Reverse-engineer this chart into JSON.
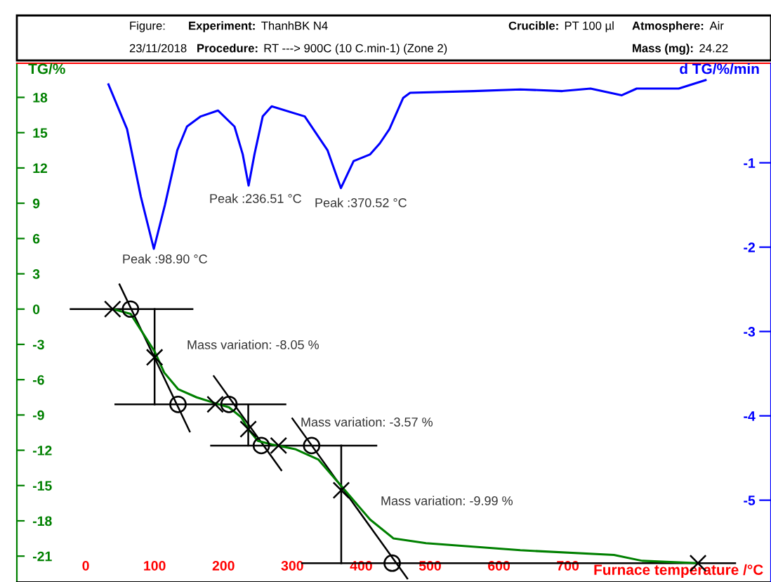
{
  "chart_data": {
    "type": "line",
    "xlabel": "Furnace temperature /°C",
    "ylabel": "TG/%",
    "y2label": "d TG/%/min",
    "xlim": [
      -100,
      995
    ],
    "xticks": [
      0,
      100,
      200,
      300,
      400,
      500,
      600,
      700
    ],
    "ylim": [
      -23.2,
      20.9
    ],
    "yticks": [
      -21,
      -18,
      -15,
      -12,
      -9,
      -6,
      -3,
      0,
      3,
      6,
      9,
      12,
      15,
      18
    ],
    "y2lim": [
      -5.97,
      0.18
    ],
    "y2ticks": [
      -5,
      -4,
      -3,
      -2,
      -1
    ],
    "grid": false,
    "legend": false,
    "series": [
      {
        "axis": "y2",
        "color": "#0000ff",
        "x": [
          33,
          60,
          80,
          98.9,
          115,
          133,
          147,
          167,
          192,
          216,
          228,
          236.5,
          245,
          257,
          270,
          318,
          351,
          370.5,
          389,
          413,
          427,
          441,
          461,
          471,
          563,
          631,
          692,
          733,
          778,
          800,
          861,
          900
        ],
        "values": [
          -0.07,
          -0.6,
          -1.4,
          -2.02,
          -1.5,
          -0.85,
          -0.57,
          -0.45,
          -0.38,
          -0.57,
          -0.9,
          -1.27,
          -0.9,
          -0.45,
          -0.33,
          -0.45,
          -0.85,
          -1.3,
          -0.98,
          -0.9,
          -0.77,
          -0.6,
          -0.23,
          -0.17,
          -0.15,
          -0.13,
          -0.15,
          -0.12,
          -0.2,
          -0.12,
          -0.12,
          -0.02
        ]
      },
      {
        "color": "#008000",
        "x": [
          39,
          65,
          100,
          114,
          134,
          161,
          188,
          208,
          226,
          236,
          250,
          270,
          304,
          338,
          372,
          413,
          447,
          494,
          631,
          767,
          808,
          889
        ],
        "values": [
          0,
          -0.4,
          -3.6,
          -5.4,
          -6.8,
          -7.5,
          -8.0,
          -8.35,
          -9.2,
          -10.2,
          -11.2,
          -11.5,
          -11.9,
          -12.8,
          -15.1,
          -17.9,
          -19.5,
          -19.9,
          -20.5,
          -20.9,
          -21.4,
          -21.6
        ]
      },
      {
        "type": "line",
        "color": "#000000",
        "x": [
          -22,
          155
        ],
        "values": [
          0,
          0
        ]
      },
      {
        "type": "line",
        "color": "#000000",
        "x": [
          43,
          290
        ],
        "values": [
          -8.1,
          -8.1
        ]
      },
      {
        "type": "line",
        "color": "#000000",
        "x": [
          182,
          422
        ],
        "values": [
          -11.6,
          -11.6
        ]
      },
      {
        "type": "line",
        "color": "#000000",
        "x": [
          314,
          943
        ],
        "values": [
          -21.6,
          -21.6
        ]
      },
      {
        "type": "line",
        "color": "#000000",
        "x": [
          49,
          151
        ],
        "values": [
          2.1,
          -10.4
        ]
      },
      {
        "type": "line",
        "color": "#000000",
        "x": [
          186,
          284
        ],
        "values": [
          -5.7,
          -13.7
        ]
      },
      {
        "type": "line",
        "color": "#000000",
        "x": [
          300,
          467
        ],
        "values": [
          -9.3,
          -22.9
        ]
      },
      {
        "type": "line",
        "color": "#000000",
        "x": [
          100,
          100
        ],
        "values": [
          0,
          -8.1
        ]
      },
      {
        "type": "line",
        "color": "#000000",
        "x": [
          236,
          236
        ],
        "values": [
          -8.1,
          -11.6
        ]
      },
      {
        "type": "line",
        "color": "#000000",
        "x": [
          371,
          371
        ],
        "values": [
          -11.6,
          -21.6
        ]
      },
      {
        "type": "scatter",
        "marker": "cross",
        "color": "#000000",
        "x": [
          39,
          100,
          188,
          236,
          280,
          371,
          889
        ],
        "values": [
          0,
          -4.1,
          -8.1,
          -10.2,
          -11.6,
          -15.4,
          -21.6
        ]
      },
      {
        "type": "scatter",
        "marker": "circle",
        "color": "#000000",
        "x": [
          65,
          134,
          208,
          255,
          328,
          445
        ],
        "values": [
          0,
          -8.1,
          -8.1,
          -11.6,
          -11.6,
          -21.6
        ]
      }
    ],
    "annotations": [
      "Figure:",
      "Experiment:",
      "ThanhBK N4",
      "Crucible:",
      "PT 100 µl",
      "Atmosphere:",
      "Air",
      "23/11/2018",
      "Procedure:",
      "RT ---> 900C (10 C.min-1) (Zone 2)",
      "Mass (mg):",
      "24.22",
      "Peak :98.90 °C",
      "Peak :236.51 °C",
      "Peak :370.52 °C",
      "Mass variation: -8.05 %",
      "Mass variation: -3.57 %",
      "Mass variation: -9.99 %"
    ]
  }
}
